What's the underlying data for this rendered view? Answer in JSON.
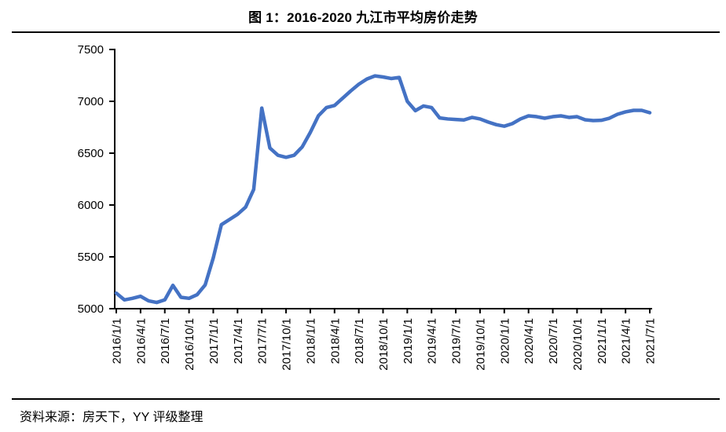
{
  "figure": {
    "title": "图 1：2016-2020 九江市平均房价走势",
    "source_note": "资料来源：房天下，YY 评级整理"
  },
  "colors": {
    "line": "#4472C4",
    "axis": "#000000",
    "text": "#000000"
  },
  "chart_data": {
    "type": "line",
    "title": "图 1：2016-2020 九江市平均房价走势",
    "xlabel": "",
    "ylabel": "",
    "ylim": [
      5000,
      7500
    ],
    "grid": false,
    "legend": "none",
    "y_ticks": [
      5000,
      5500,
      6000,
      6500,
      7000,
      7500
    ],
    "x_tick_labels": [
      "2016/1/1",
      "2016/4/1",
      "2016/7/1",
      "2016/10/1",
      "2017/1/1",
      "2017/4/1",
      "2017/7/1",
      "2017/10/1",
      "2018/1/1",
      "2018/4/1",
      "2018/7/1",
      "2018/10/1",
      "2019/1/1",
      "2019/4/1",
      "2019/7/1",
      "2019/10/1",
      "2020/1/1",
      "2020/4/1",
      "2020/7/1",
      "2020/10/1",
      "2021/1/1",
      "2021/4/1",
      "2021/7/1"
    ],
    "x_tick_every_months": 3,
    "x": [
      "2016/1",
      "2016/2",
      "2016/3",
      "2016/4",
      "2016/5",
      "2016/6",
      "2016/7",
      "2016/8",
      "2016/9",
      "2016/10",
      "2016/11",
      "2016/12",
      "2017/1",
      "2017/2",
      "2017/3",
      "2017/4",
      "2017/5",
      "2017/6",
      "2017/7",
      "2017/8",
      "2017/9",
      "2017/10",
      "2017/11",
      "2017/12",
      "2018/1",
      "2018/2",
      "2018/3",
      "2018/4",
      "2018/5",
      "2018/6",
      "2018/7",
      "2018/8",
      "2018/9",
      "2018/10",
      "2018/11",
      "2018/12",
      "2019/1",
      "2019/2",
      "2019/3",
      "2019/4",
      "2019/5",
      "2019/6",
      "2019/7",
      "2019/8",
      "2019/9",
      "2019/10",
      "2019/11",
      "2019/12",
      "2020/1",
      "2020/2",
      "2020/3",
      "2020/4",
      "2020/5",
      "2020/6",
      "2020/7",
      "2020/8",
      "2020/9",
      "2020/10",
      "2020/11",
      "2020/12",
      "2021/1",
      "2021/2",
      "2021/3",
      "2021/4",
      "2021/5",
      "2021/6",
      "2021/7"
    ],
    "values": [
      5150,
      5085,
      5100,
      5120,
      5075,
      5060,
      5085,
      5225,
      5110,
      5100,
      5135,
      5230,
      5490,
      5810,
      5860,
      5910,
      5980,
      6150,
      6935,
      6550,
      6480,
      6460,
      6480,
      6560,
      6700,
      6860,
      6940,
      6960,
      7030,
      7100,
      7165,
      7215,
      7245,
      7235,
      7220,
      7230,
      7000,
      6910,
      6955,
      6940,
      6840,
      6830,
      6825,
      6820,
      6845,
      6830,
      6800,
      6775,
      6760,
      6785,
      6830,
      6860,
      6852,
      6837,
      6852,
      6860,
      6845,
      6852,
      6822,
      6814,
      6817,
      6837,
      6875,
      6898,
      6913,
      6913,
      6890
    ]
  }
}
